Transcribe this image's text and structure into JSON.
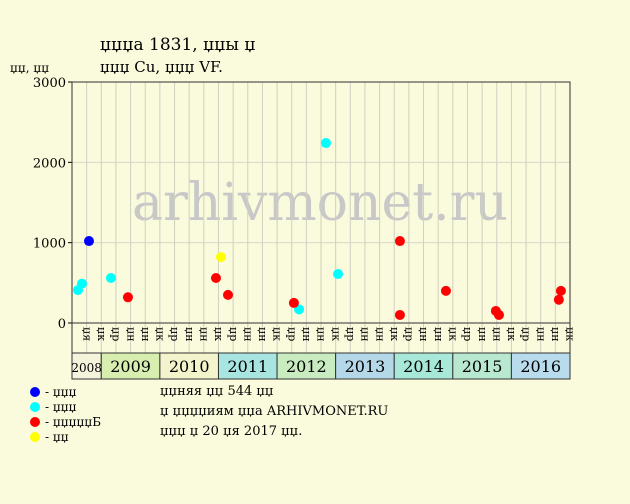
{
  "chart_data": {
    "type": "scatter",
    "title": "џџџа 1831, џџы џ",
    "subtitle": "џџџ Cu, џџџ VF.",
    "y_label": "џџ, џџ",
    "watermark": "arhivmonet.ru",
    "xlim": [
      0,
      34
    ],
    "ylim": [
      0,
      3000
    ],
    "yticks": [
      0,
      1000,
      2000,
      3000
    ],
    "grid": true,
    "years": [
      {
        "label": "2008",
        "color": "#f4f4dc",
        "quarters": [
          "џя",
          "џк"
        ]
      },
      {
        "label": "2009",
        "color": "#d8eeb0",
        "quarters": [
          "џр",
          "џн",
          "џн",
          "џк"
        ]
      },
      {
        "label": "2010",
        "color": "#f4f4cc",
        "quarters": [
          "џр",
          "џн",
          "џн",
          "џк"
        ]
      },
      {
        "label": "2011",
        "color": "#a8e4e0",
        "quarters": [
          "џр",
          "џн",
          "џн",
          "џк"
        ]
      },
      {
        "label": "2012",
        "color": "#c8ecc0",
        "quarters": [
          "џр",
          "џн",
          "џн",
          "џк"
        ]
      },
      {
        "label": "2013",
        "color": "#b4d8e8",
        "quarters": [
          "џр",
          "џн",
          "џн",
          "џк"
        ]
      },
      {
        "label": "2014",
        "color": "#a8e8d8",
        "quarters": [
          "џр",
          "џн",
          "џн",
          "џк"
        ]
      },
      {
        "label": "2015",
        "color": "#b8e8d0",
        "quarters": [
          "џр",
          "џн",
          "џн",
          "џк"
        ]
      },
      {
        "label": "2016",
        "color": "#b8dcec",
        "quarters": [
          "џр",
          "џн",
          "џн",
          "џк"
        ]
      }
    ],
    "series": [
      {
        "name": "- џџџ",
        "color": "#0000ff",
        "x": [
          1.16
        ],
        "values": [
          1020
        ]
      },
      {
        "name": "- џџџ",
        "color": "#00ffff",
        "x": [
          0.41,
          0.68,
          2.66,
          15.5,
          17.34,
          18.16
        ],
        "values": [
          410,
          490,
          560,
          170,
          2240,
          610
        ]
      },
      {
        "name": "- џџџџџБ",
        "color": "#ff0000",
        "x": [
          3.82,
          9.83,
          10.65,
          15.15,
          22.39,
          22.39,
          25.53,
          28.94,
          29.15,
          33.24,
          33.38
        ],
        "values": [
          320,
          560,
          350,
          250,
          1020,
          100,
          400,
          150,
          100,
          290,
          400
        ]
      },
      {
        "name": "- џџ",
        "color": "#ffff00",
        "x": [
          10.17
        ],
        "values": [
          820
        ]
      }
    ],
    "notes": [
      "џџняя џџ 544 џџ",
      "џ џџџџиям џџа ARHIVMONET.RU",
      "џџџ џ 20 џя 2017 џџ."
    ]
  }
}
